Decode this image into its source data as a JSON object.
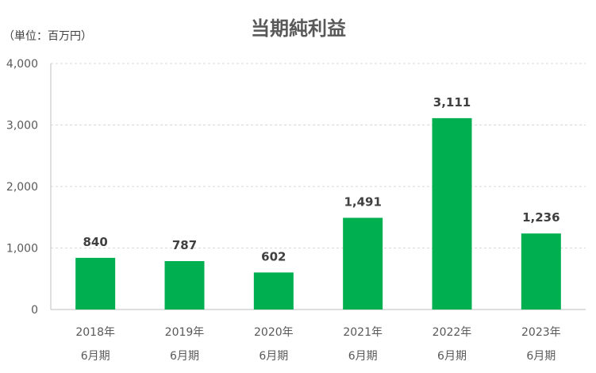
{
  "chart_data": {
    "type": "bar",
    "title": "当期純利益",
    "unit_label": "（単位：百万円）",
    "categories": [
      [
        "2018年",
        "6月期"
      ],
      [
        "2019年",
        "6月期"
      ],
      [
        "2020年",
        "6月期"
      ],
      [
        "2021年",
        "6月期"
      ],
      [
        "2022年",
        "6月期"
      ],
      [
        "2023年",
        "6月期"
      ]
    ],
    "values": [
      840,
      787,
      602,
      1491,
      3111,
      1236
    ],
    "data_labels": [
      "840",
      "787",
      "602",
      "1,491",
      "3,111",
      "1,236"
    ],
    "ylim": [
      0,
      4000
    ],
    "yticks": [
      0,
      1000,
      2000,
      3000,
      4000
    ],
    "ytick_labels": [
      "0",
      "1,000",
      "2,000",
      "3,000",
      "4,000"
    ],
    "grid": true,
    "bar_color": "#00b050"
  }
}
